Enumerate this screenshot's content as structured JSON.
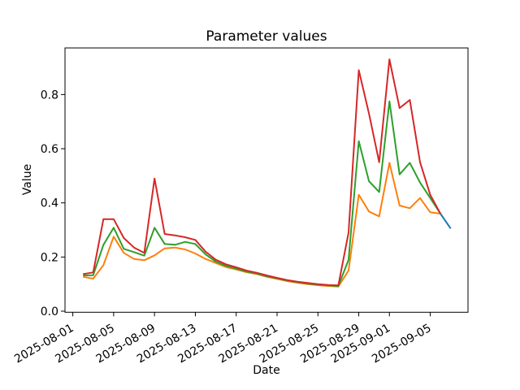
{
  "chart_data": {
    "type": "line",
    "title": "Parameter values",
    "xlabel": "Date",
    "ylabel": "Value",
    "grid": false,
    "legend": "none",
    "background_color": "#ffffff",
    "text_color": "#000000",
    "ylim": [
      -0.005,
      0.971
    ],
    "xlim_dates": [
      "2025-07-31",
      "2025-09-08"
    ],
    "y_tick_labels": [
      "0.0",
      "0.2",
      "0.4",
      "0.6",
      "0.8"
    ],
    "x_tick_labels": [
      "2025-08-01",
      "2025-08-05",
      "2025-08-09",
      "2025-08-13",
      "2025-08-17",
      "2025-08-21",
      "2025-08-25",
      "2025-08-29",
      "2025-09-01",
      "2025-09-05"
    ],
    "x_tick_rotation_deg": 30,
    "dates": [
      "2025-08-02",
      "2025-08-03",
      "2025-08-04",
      "2025-08-05",
      "2025-08-06",
      "2025-08-07",
      "2025-08-08",
      "2025-08-09",
      "2025-08-10",
      "2025-08-11",
      "2025-08-12",
      "2025-08-13",
      "2025-08-14",
      "2025-08-15",
      "2025-08-16",
      "2025-08-17",
      "2025-08-18",
      "2025-08-19",
      "2025-08-20",
      "2025-08-21",
      "2025-08-22",
      "2025-08-23",
      "2025-08-24",
      "2025-08-25",
      "2025-08-26",
      "2025-08-27",
      "2025-08-28",
      "2025-08-29",
      "2025-08-30",
      "2025-08-31",
      "2025-09-01",
      "2025-09-02",
      "2025-09-03",
      "2025-09-04",
      "2025-09-05",
      "2025-09-06"
    ],
    "series": [
      {
        "name": "blue-line",
        "color": "#1f77b4",
        "dates": [
          "2025-09-06",
          "2025-09-07"
        ],
        "values": [
          0.36,
          0.305
        ]
      },
      {
        "name": "orange-line",
        "color": "#ff7f0e",
        "values": [
          0.127,
          0.12,
          0.17,
          0.275,
          0.215,
          0.193,
          0.188,
          0.206,
          0.232,
          0.235,
          0.228,
          0.213,
          0.193,
          0.178,
          0.163,
          0.154,
          0.144,
          0.137,
          0.127,
          0.119,
          0.111,
          0.105,
          0.1,
          0.096,
          0.093,
          0.091,
          0.15,
          0.43,
          0.368,
          0.35,
          0.548,
          0.39,
          0.38,
          0.418,
          0.365,
          0.36
        ]
      },
      {
        "name": "green-line",
        "color": "#2ca02c",
        "values": [
          0.132,
          0.133,
          0.245,
          0.308,
          0.23,
          0.218,
          0.205,
          0.308,
          0.248,
          0.245,
          0.256,
          0.248,
          0.21,
          0.183,
          0.167,
          0.157,
          0.146,
          0.139,
          0.129,
          0.121,
          0.113,
          0.107,
          0.102,
          0.098,
          0.095,
          0.093,
          0.19,
          0.628,
          0.48,
          0.44,
          0.775,
          0.505,
          0.548,
          0.475,
          0.418,
          0.36
        ]
      },
      {
        "name": "red-line",
        "color": "#d62728",
        "values": [
          0.137,
          0.143,
          0.34,
          0.34,
          0.27,
          0.235,
          0.215,
          0.49,
          0.285,
          0.28,
          0.273,
          0.263,
          0.22,
          0.19,
          0.173,
          0.162,
          0.15,
          0.142,
          0.132,
          0.123,
          0.115,
          0.109,
          0.104,
          0.1,
          0.097,
          0.095,
          0.29,
          0.89,
          0.73,
          0.55,
          0.93,
          0.75,
          0.78,
          0.55,
          0.43,
          0.36
        ]
      }
    ]
  }
}
